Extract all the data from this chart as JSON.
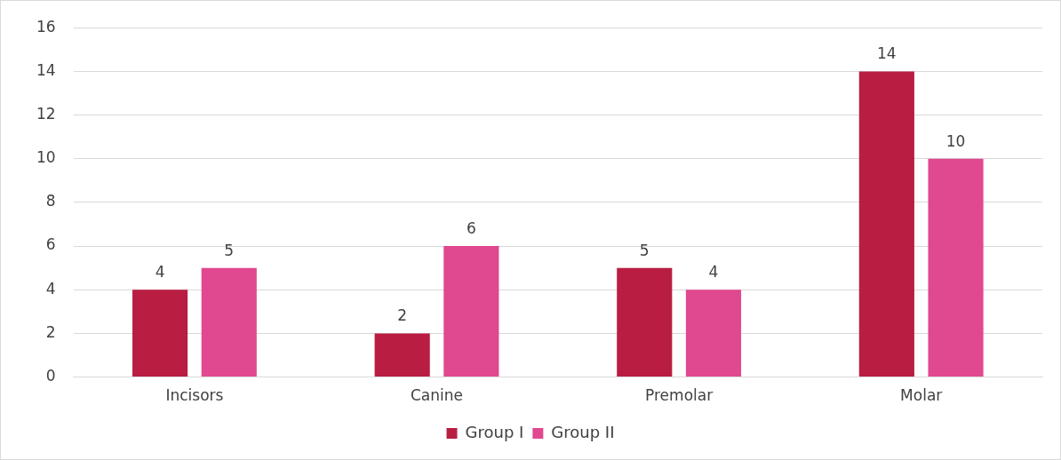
{
  "chart_data": {
    "type": "bar",
    "categories": [
      "Incisors",
      "Canine",
      "Premolar",
      "Molar"
    ],
    "series": [
      {
        "name": "Group I",
        "color": "#b91e42",
        "values": [
          4,
          2,
          5,
          14
        ]
      },
      {
        "name": "Group II",
        "color": "#e0488f",
        "values": [
          5,
          6,
          4,
          10
        ]
      }
    ],
    "ylim": [
      0,
      16
    ],
    "yticks": [
      0,
      2,
      4,
      6,
      8,
      10,
      12,
      14,
      16
    ],
    "grid": "y",
    "legend": "bottom",
    "data_labels": true
  }
}
